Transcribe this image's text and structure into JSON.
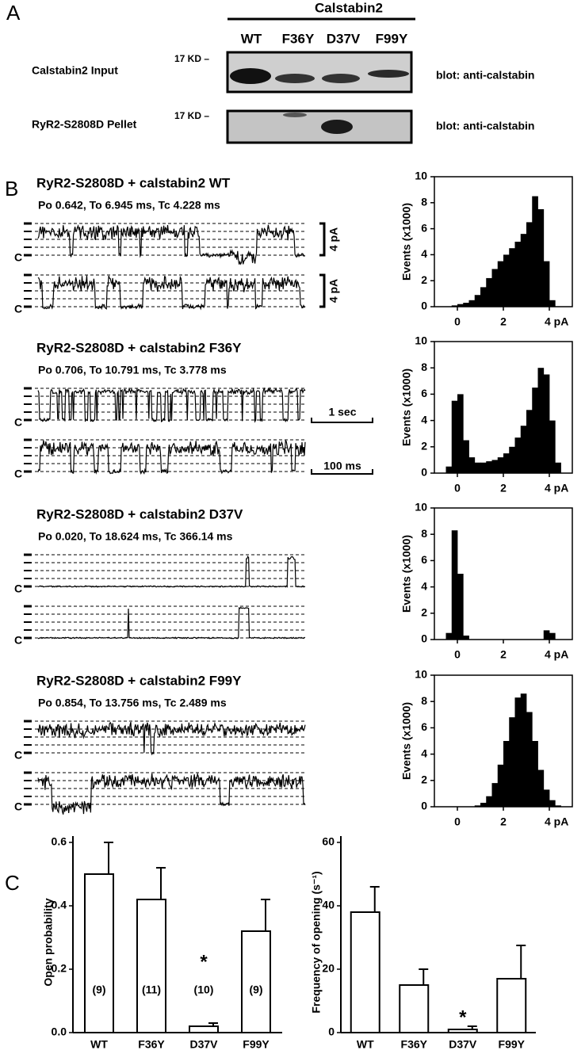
{
  "panel_labels": [
    "A",
    "B",
    "C"
  ],
  "panel_a": {
    "group_label": "Calstabin2",
    "lanes": [
      "WT",
      "F36Y",
      "D37V",
      "F99Y"
    ],
    "rows": [
      {
        "label": "Calstabin2 Input",
        "marker": "17 KD –",
        "blot": "blot: anti-calstabin"
      },
      {
        "label": "RyR2-S2808D Pellet",
        "marker": "17 KD –",
        "blot": "blot: anti-calstabin"
      }
    ]
  },
  "panel_b": {
    "traces": [
      {
        "title": "RyR2-S2808D + calstabin2 WT",
        "stats": "Po 0.642, To 6.945 ms, Tc 4.228 ms"
      },
      {
        "title": "RyR2-S2808D + calstabin2 F36Y",
        "stats": "Po 0.706, To 10.791 ms, Tc 3.778 ms"
      },
      {
        "title": "RyR2-S2808D + calstabin2 D37V",
        "stats": "Po 0.020, To 18.624 ms, Tc 366.14 ms"
      },
      {
        "title": "RyR2-S2808D + calstabin2 F99Y",
        "stats": "Po 0.854, To 13.756 ms, Tc 2.489 ms"
      }
    ],
    "closed_label": "C",
    "scale_bars": {
      "amplitude": "4 pA",
      "time_long": "1 sec",
      "time_short": "100 ms"
    }
  },
  "chart_data": [
    {
      "type": "histogram",
      "ylabel": "Events (x1000)",
      "color": "#000000",
      "bins": [
        -1,
        -0.75,
        -0.5,
        -0.25,
        0,
        0.25,
        0.5,
        0.75,
        1,
        1.25,
        1.5,
        1.75,
        2,
        2.25,
        2.5,
        2.75,
        3,
        3.25,
        3.5,
        3.75,
        4,
        4.25,
        4.5,
        4.75,
        5
      ],
      "values": [
        0,
        0,
        0,
        0.1,
        0.2,
        0.3,
        0.5,
        0.9,
        1.5,
        2.2,
        2.9,
        3.5,
        4.0,
        4.5,
        5.0,
        5.6,
        6.5,
        8.5,
        7.5,
        3.5,
        0.5,
        0,
        0,
        0
      ],
      "xlim": [
        -1,
        5
      ],
      "ylim": [
        0,
        10
      ],
      "xticks": [
        0,
        2,
        {
          "value": 4,
          "label": "4 pA"
        }
      ],
      "yticks": [
        0,
        2,
        4,
        6,
        8,
        10
      ]
    },
    {
      "type": "histogram",
      "ylabel": "Events (x1000)",
      "color": "#000000",
      "bins": [
        -1,
        -0.75,
        -0.5,
        -0.25,
        0,
        0.25,
        0.5,
        0.75,
        1,
        1.25,
        1.5,
        1.75,
        2,
        2.25,
        2.5,
        2.75,
        3,
        3.25,
        3.5,
        3.75,
        4,
        4.25,
        4.5,
        4.75,
        5
      ],
      "values": [
        0,
        0,
        0.5,
        5.5,
        6.0,
        2.5,
        1.2,
        0.8,
        0.8,
        0.9,
        1.0,
        1.2,
        1.5,
        2.0,
        2.7,
        3.6,
        4.8,
        6.5,
        8.0,
        7.5,
        4.0,
        0.8,
        0,
        0
      ],
      "xlim": [
        -1,
        5
      ],
      "ylim": [
        0,
        10
      ],
      "xticks": [
        0,
        2,
        {
          "value": 4,
          "label": "4 pA"
        }
      ],
      "yticks": [
        0,
        2,
        4,
        6,
        8,
        10
      ]
    },
    {
      "type": "histogram",
      "ylabel": "Events (x1000)",
      "color": "#000000",
      "bins": [
        -1,
        -0.75,
        -0.5,
        -0.25,
        0,
        0.25,
        0.5,
        0.75,
        1,
        1.25,
        1.5,
        1.75,
        2,
        2.25,
        2.5,
        2.75,
        3,
        3.25,
        3.5,
        3.75,
        4,
        4.25,
        4.5,
        4.75,
        5
      ],
      "values": [
        0,
        0,
        0.5,
        8.3,
        5.0,
        0.3,
        0,
        0,
        0,
        0,
        0,
        0,
        0,
        0,
        0,
        0,
        0,
        0,
        0,
        0.7,
        0.5,
        0,
        0,
        0
      ],
      "xlim": [
        -1,
        5
      ],
      "ylim": [
        0,
        10
      ],
      "xticks": [
        0,
        2,
        {
          "value": 4,
          "label": "4 pA"
        }
      ],
      "yticks": [
        0,
        2,
        4,
        6,
        8,
        10
      ]
    },
    {
      "type": "histogram",
      "ylabel": "Events (x1000)",
      "color": "#000000",
      "bins": [
        -1,
        -0.75,
        -0.5,
        -0.25,
        0,
        0.25,
        0.5,
        0.75,
        1,
        1.25,
        1.5,
        1.75,
        2,
        2.25,
        2.5,
        2.75,
        3,
        3.25,
        3.5,
        3.75,
        4,
        4.25,
        4.5,
        4.75,
        5
      ],
      "values": [
        0,
        0,
        0,
        0,
        0,
        0,
        0,
        0.1,
        0.3,
        0.8,
        1.8,
        3.2,
        5.0,
        6.8,
        8.3,
        8.6,
        7.2,
        5.0,
        2.8,
        1.3,
        0.5,
        0.1,
        0,
        0
      ],
      "xlim": [
        -1,
        5
      ],
      "ylim": [
        0,
        10
      ],
      "xticks": [
        0,
        2,
        {
          "value": 4,
          "label": "4 pA"
        }
      ],
      "yticks": [
        0,
        2,
        4,
        6,
        8,
        10
      ]
    },
    {
      "type": "bar",
      "ylabel": "Open probability",
      "color": "#ffffff",
      "categories": [
        "WT",
        "F36Y",
        "D37V",
        "F99Y"
      ],
      "values": [
        0.5,
        0.42,
        0.02,
        0.32
      ],
      "errors": [
        0.1,
        0.1,
        0.01,
        0.1
      ],
      "n_labels": [
        "(9)",
        "(11)",
        "(10)",
        "(9)"
      ],
      "significance": [
        null,
        null,
        "*",
        null
      ],
      "ylim": [
        0,
        0.62
      ],
      "yticks": [
        {
          "value": 0,
          "label": "0.0"
        },
        0.2,
        0.4,
        0.6
      ]
    },
    {
      "type": "bar",
      "ylabel": "Frequency of opening (s⁻¹)",
      "color": "#ffffff",
      "categories": [
        "WT",
        "F36Y",
        "D37V",
        "F99Y"
      ],
      "values": [
        38,
        15,
        1,
        17
      ],
      "errors": [
        8,
        5,
        1,
        10.5
      ],
      "significance": [
        null,
        null,
        "*",
        null
      ],
      "ylim": [
        0,
        62
      ],
      "yticks": [
        0,
        20,
        40,
        60
      ]
    }
  ]
}
